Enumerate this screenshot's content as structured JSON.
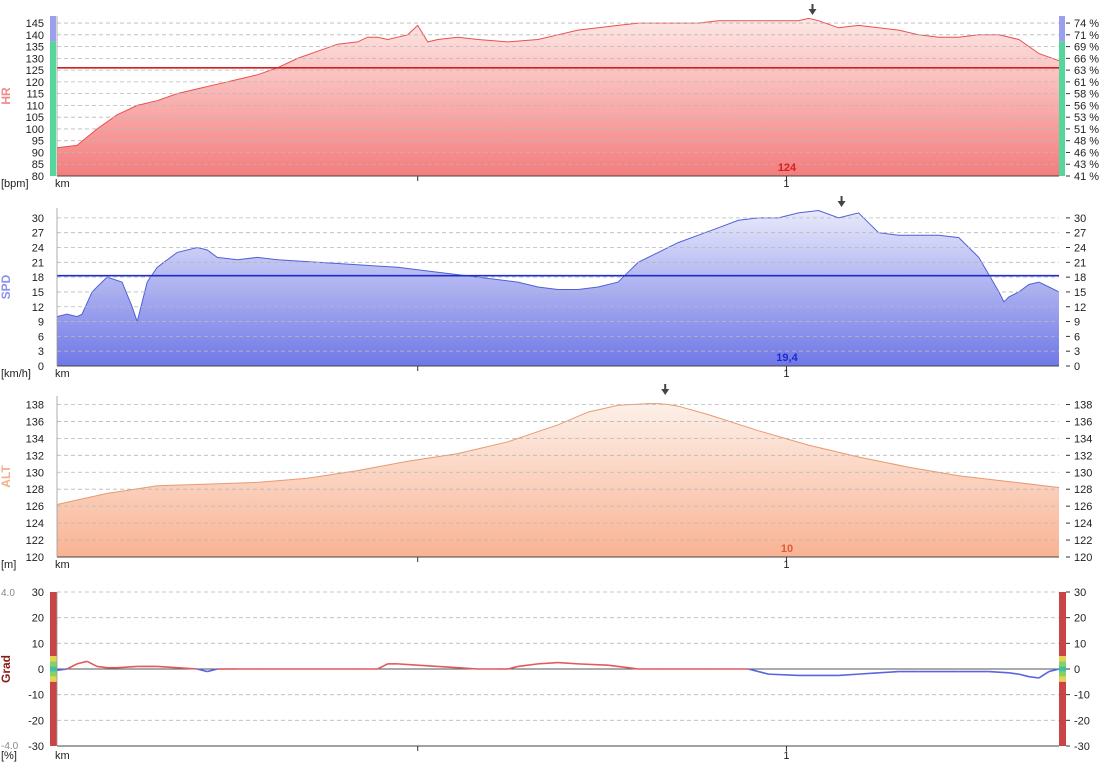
{
  "colors": {
    "hr": "#e85050",
    "hr_fill_top": "#fde8e6",
    "hr_fill_bottom": "#f47d7d",
    "hr_label": "#f08a8a",
    "hr_avg_line": "#d42020",
    "spd": "#5060d8",
    "spd_fill_top": "#e8e9fb",
    "spd_fill_bottom": "#6f78e6",
    "spd_label": "#8a8ff0",
    "spd_avg_line": "#1b2bd0",
    "alt": "#e89a70",
    "alt_fill_top": "#fdf0e8",
    "alt_fill_bottom": "#f9b394",
    "alt_label": "#f4b08c",
    "alt_value": "#e05a3a",
    "grad_up": "#e05a5a",
    "grad_down": "#5a64e0",
    "grad_label": "#8b1a1a",
    "grid": "#b8b8b8",
    "axis_text": "#222222"
  },
  "chart_data": [
    {
      "type": "area",
      "id": "hr",
      "ylabel": "HR",
      "unit": "[bpm]",
      "xunit": "km",
      "yticks": [
        80,
        85,
        90,
        95,
        100,
        105,
        110,
        115,
        120,
        125,
        130,
        135,
        140,
        145
      ],
      "ylim": [
        80,
        148
      ],
      "right_ticks": [
        "41 %",
        "43 %",
        "46 %",
        "48 %",
        "51 %",
        "53 %",
        "56 %",
        "58 %",
        "61 %",
        "63 %",
        "66 %",
        "69 %",
        "71 %",
        "74 %"
      ],
      "x_tick_labels": [
        "1"
      ],
      "average": 126,
      "value_label": "124",
      "x": [
        0,
        0.02,
        0.04,
        0.06,
        0.08,
        0.1,
        0.12,
        0.14,
        0.16,
        0.18,
        0.2,
        0.22,
        0.24,
        0.26,
        0.28,
        0.3,
        0.31,
        0.32,
        0.33,
        0.34,
        0.35,
        0.36,
        0.37,
        0.38,
        0.4,
        0.42,
        0.45,
        0.48,
        0.5,
        0.52,
        0.54,
        0.56,
        0.58,
        0.6,
        0.62,
        0.64,
        0.66,
        0.68,
        0.7,
        0.72,
        0.74,
        0.75,
        0.76,
        0.78,
        0.8,
        0.82,
        0.84,
        0.86,
        0.88,
        0.9,
        0.92,
        0.94,
        0.96,
        0.98,
        1.0
      ],
      "values": [
        92,
        93,
        100,
        106,
        110,
        112,
        115,
        117,
        119,
        121,
        123,
        126,
        130,
        133,
        136,
        137,
        139,
        139,
        138,
        139,
        140,
        144,
        137,
        138,
        139,
        138,
        137,
        138,
        140,
        142,
        143,
        144,
        145,
        145,
        145,
        145,
        146,
        146,
        146,
        146,
        146,
        147,
        146,
        143,
        144,
        143,
        142,
        140,
        139,
        139,
        140,
        140,
        138,
        132,
        129
      ],
      "marker_x": 0.754
    },
    {
      "type": "area",
      "id": "spd",
      "ylabel": "SPD",
      "unit": "[km/h]",
      "xunit": "km",
      "yticks": [
        0,
        3,
        6,
        9,
        12,
        15,
        18,
        21,
        24,
        27,
        30
      ],
      "ylim": [
        0,
        32
      ],
      "right_ticks": [
        "0",
        "3",
        "6",
        "9",
        "12",
        "15",
        "18",
        "21",
        "24",
        "27",
        "30"
      ],
      "x_tick_labels": [
        "1"
      ],
      "average": 18.3,
      "value_label": "19,4",
      "x": [
        0,
        0.01,
        0.02,
        0.025,
        0.035,
        0.05,
        0.065,
        0.075,
        0.08,
        0.09,
        0.1,
        0.12,
        0.14,
        0.15,
        0.16,
        0.18,
        0.2,
        0.22,
        0.26,
        0.3,
        0.34,
        0.38,
        0.42,
        0.46,
        0.48,
        0.5,
        0.52,
        0.54,
        0.56,
        0.57,
        0.58,
        0.6,
        0.62,
        0.64,
        0.66,
        0.68,
        0.7,
        0.72,
        0.74,
        0.76,
        0.78,
        0.8,
        0.81,
        0.82,
        0.84,
        0.86,
        0.88,
        0.9,
        0.92,
        0.94,
        0.945,
        0.95,
        0.96,
        0.97,
        0.98,
        0.99,
        1.0
      ],
      "values": [
        10,
        10.5,
        10,
        10.5,
        15,
        18,
        17,
        12,
        9,
        17,
        20,
        23,
        24,
        23.5,
        22,
        21.5,
        22,
        21.5,
        21,
        20.5,
        20,
        19,
        18,
        17,
        16,
        15.5,
        15.5,
        16,
        17,
        19,
        21,
        23,
        25,
        26.5,
        28,
        29.5,
        30,
        30,
        31,
        31.5,
        30,
        31,
        29,
        27,
        26.5,
        26.5,
        26.5,
        26,
        22,
        15,
        13,
        14,
        15,
        16.5,
        17,
        16,
        15
      ],
      "marker_x": 0.783
    },
    {
      "type": "area",
      "id": "alt",
      "ylabel": "ALT",
      "unit": "[m]",
      "xunit": "km",
      "yticks": [
        120,
        122,
        124,
        126,
        128,
        130,
        132,
        134,
        136,
        138
      ],
      "ylim": [
        120,
        139
      ],
      "right_ticks": [
        "120",
        "122",
        "124",
        "126",
        "128",
        "130",
        "132",
        "134",
        "136",
        "138"
      ],
      "x_tick_labels": [
        "1"
      ],
      "value_label": "10",
      "x": [
        0,
        0.05,
        0.1,
        0.15,
        0.2,
        0.25,
        0.3,
        0.35,
        0.4,
        0.45,
        0.5,
        0.53,
        0.56,
        0.59,
        0.6,
        0.61,
        0.62,
        0.65,
        0.7,
        0.75,
        0.8,
        0.85,
        0.9,
        0.95,
        1.0
      ],
      "values": [
        126.2,
        127.5,
        128.4,
        128.6,
        128.8,
        129.3,
        130.2,
        131.3,
        132.2,
        133.6,
        135.6,
        137.1,
        137.9,
        138.1,
        138.1,
        138.0,
        137.8,
        136.8,
        134.9,
        133.2,
        131.8,
        130.6,
        129.6,
        128.9,
        128.2
      ],
      "marker_x": 0.607
    },
    {
      "type": "line",
      "id": "grad",
      "ylabel": "Grad",
      "unit": "[%]",
      "xunit": "km",
      "yticks": [
        -30,
        -20,
        -10,
        0,
        10,
        20,
        30
      ],
      "ylim": [
        -30,
        30
      ],
      "right_ticks": [
        "-30",
        "-20",
        "-10",
        "0",
        "10",
        "20",
        "30"
      ],
      "x_tick_labels": [
        "1"
      ],
      "scale_top": "4.0",
      "scale_bottom": "-4.0",
      "x": [
        0,
        0.01,
        0.02,
        0.03,
        0.04,
        0.05,
        0.06,
        0.08,
        0.1,
        0.12,
        0.14,
        0.15,
        0.16,
        0.17,
        0.18,
        0.2,
        0.25,
        0.3,
        0.32,
        0.33,
        0.34,
        0.36,
        0.38,
        0.4,
        0.42,
        0.44,
        0.45,
        0.46,
        0.48,
        0.5,
        0.52,
        0.55,
        0.58,
        0.6,
        0.65,
        0.69,
        0.7,
        0.71,
        0.74,
        0.78,
        0.8,
        0.82,
        0.84,
        0.86,
        0.9,
        0.93,
        0.95,
        0.96,
        0.97,
        0.98,
        0.99,
        1.0
      ],
      "values": [
        -0.5,
        0,
        2,
        3,
        1,
        0.5,
        0.5,
        1,
        1,
        0.5,
        0,
        -1,
        0,
        0,
        0,
        0,
        0,
        0,
        0,
        2,
        2,
        1.5,
        1,
        0.5,
        0,
        0,
        0,
        1,
        2,
        2.5,
        2,
        1.5,
        0,
        0,
        0,
        0,
        -1,
        -2,
        -2.5,
        -2.5,
        -2,
        -1.5,
        -1,
        -1,
        -1,
        -1,
        -1.5,
        -2,
        -3,
        -3.5,
        -1,
        0
      ]
    }
  ]
}
